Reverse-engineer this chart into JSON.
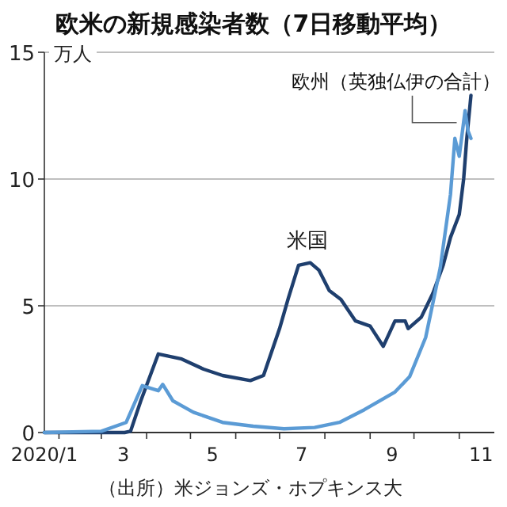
{
  "chart_data": {
    "type": "line",
    "title": "欧米の新規感染者数（7日移動平均）",
    "ylabel": "万人",
    "annotations": [
      "（出所）米ジョンズ・ホプキンス大"
    ],
    "xlim": [
      "2020-01-22",
      "2020-11-25"
    ],
    "ylim": [
      0,
      15
    ],
    "yticks": [
      0,
      5,
      10,
      15
    ],
    "xticks": [
      {
        "value": "2020-01-22",
        "label": "2020/1"
      },
      {
        "value": "2020-02-01",
        "label": null
      },
      {
        "value": "2020-03-01",
        "label": null
      },
      {
        "value": "2020-03-16",
        "label": "3"
      },
      {
        "value": "2020-04-01",
        "label": null
      },
      {
        "value": "2020-05-01",
        "label": null
      },
      {
        "value": "2020-05-16",
        "label": "5"
      },
      {
        "value": "2020-06-01",
        "label": null
      },
      {
        "value": "2020-07-01",
        "label": null
      },
      {
        "value": "2020-07-16",
        "label": "7"
      },
      {
        "value": "2020-08-01",
        "label": null
      },
      {
        "value": "2020-09-01",
        "label": null
      },
      {
        "value": "2020-09-16",
        "label": "9"
      },
      {
        "value": "2020-10-01",
        "label": null
      },
      {
        "value": "2020-11-01",
        "label": null
      },
      {
        "value": "2020-11-16",
        "label": "11"
      }
    ],
    "grid": "y",
    "line_style": "solid",
    "marker": "none",
    "series": [
      {
        "name": "米国",
        "color": "#1f3f6e",
        "x": [
          "2020-01-22",
          "2020-03-17",
          "2020-03-21",
          "2020-03-28",
          "2020-04-09",
          "2020-04-25",
          "2020-05-10",
          "2020-05-23",
          "2020-06-11",
          "2020-06-20",
          "2020-07-01",
          "2020-07-07",
          "2020-07-14",
          "2020-07-22",
          "2020-07-28",
          "2020-08-04",
          "2020-08-12",
          "2020-08-22",
          "2020-09-01",
          "2020-09-10",
          "2020-09-18",
          "2020-09-25",
          "2020-09-27",
          "2020-10-06",
          "2020-10-14",
          "2020-10-21",
          "2020-10-26",
          "2020-11-01",
          "2020-11-04",
          "2020-11-06",
          "2020-11-09"
        ],
        "values": [
          0,
          0,
          0.05,
          1.25,
          3.1,
          2.9,
          2.5,
          2.25,
          2.05,
          2.25,
          4.1,
          5.3,
          6.6,
          6.7,
          6.4,
          5.6,
          5.25,
          4.4,
          4.2,
          3.4,
          4.4,
          4.4,
          4.1,
          4.55,
          5.5,
          6.6,
          7.7,
          8.6,
          10,
          11.5,
          13.3
        ]
      },
      {
        "name": "欧州（英独仏伊の合計）",
        "color": "#5b9bd5",
        "x": [
          "2020-01-22",
          "2020-03-01",
          "2020-03-18",
          "2020-03-29",
          "2020-04-09",
          "2020-04-12",
          "2020-04-19",
          "2020-05-03",
          "2020-05-23",
          "2020-06-13",
          "2020-07-04",
          "2020-07-25",
          "2020-08-11",
          "2020-08-28",
          "2020-09-18",
          "2020-09-28",
          "2020-10-09",
          "2020-10-19",
          "2020-10-26",
          "2020-10-29",
          "2020-11-01",
          "2020-11-05",
          "2020-11-07",
          "2020-11-09"
        ],
        "values": [
          0,
          0.05,
          0.4,
          1.85,
          1.65,
          1.9,
          1.25,
          0.8,
          0.4,
          0.25,
          0.15,
          0.2,
          0.4,
          0.9,
          1.6,
          2.2,
          3.75,
          6.5,
          9.4,
          11.6,
          10.9,
          12.7,
          11.9,
          11.6
        ]
      }
    ]
  }
}
